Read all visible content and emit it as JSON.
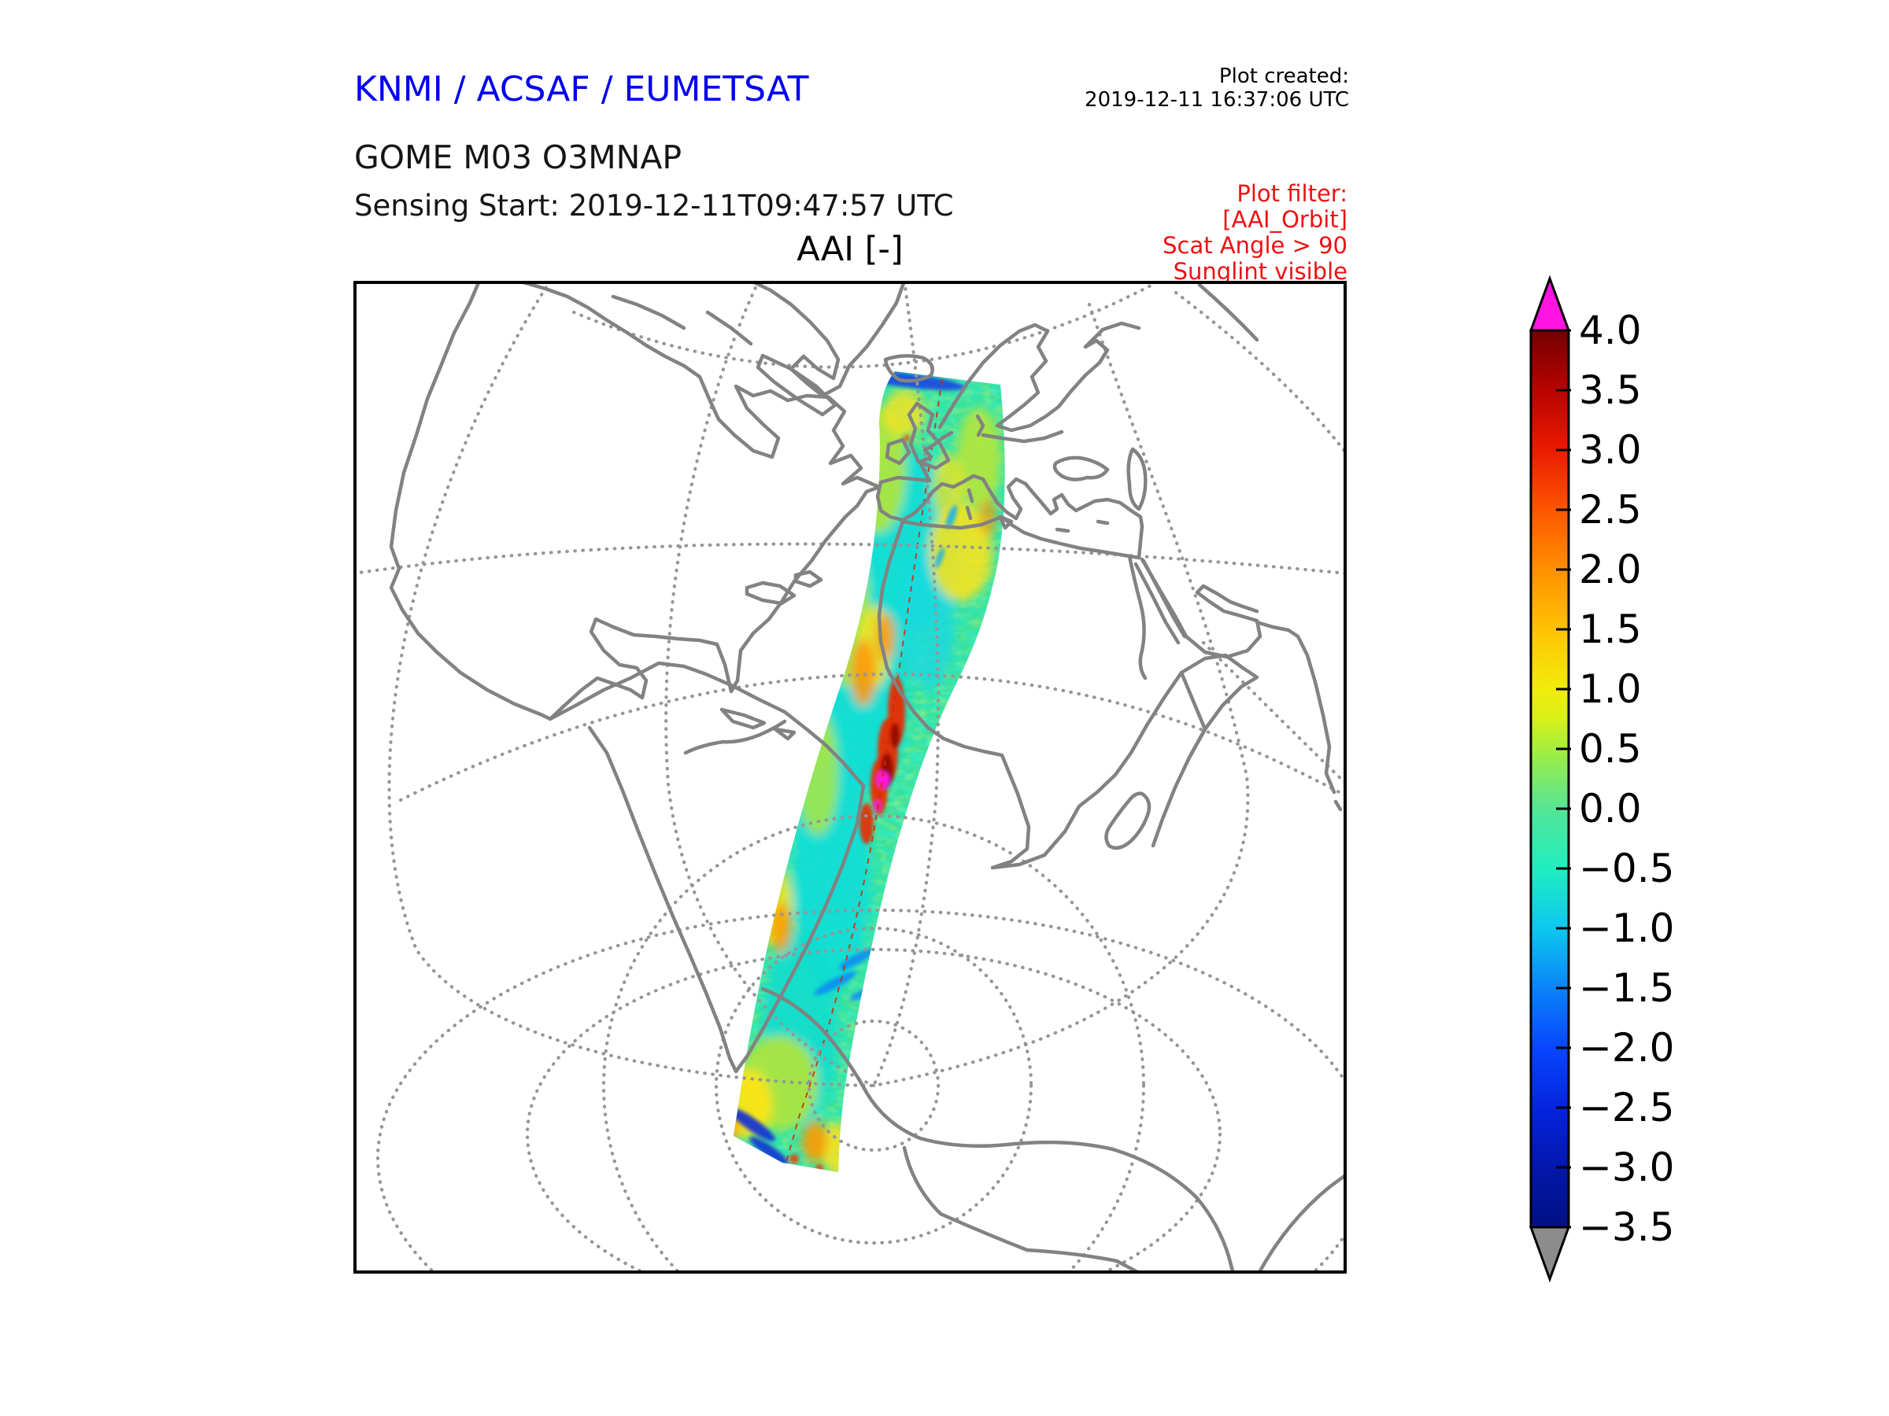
{
  "header": {
    "org": "KNMI / ACSAF / EUMETSAT",
    "org_color": "#0000ee",
    "product": "GOME M03 O3MNAP",
    "sensing_start": "Sensing Start: 2019-12-11T09:47:57 UTC",
    "created_label": "Plot created:",
    "created_value": "2019-12-11 16:37:06 UTC"
  },
  "filter_note": {
    "color": "#ee1111",
    "line1": "Plot filter:",
    "line2": "[AAI_Orbit]",
    "line3": "Scat Angle > 90",
    "line4": "Sunglint visible"
  },
  "map": {
    "title": "AAI [-]",
    "frame_color": "#000000",
    "coast_color": "#828282",
    "grid_color": "#969696",
    "background": "#ffffff"
  },
  "chart_data": {
    "type": "heatmap",
    "title": "AAI [-]",
    "organisation": "KNMI / ACSAF / EUMETSAT",
    "product": "GOME M03 O3MNAP",
    "sensing_start_utc": "2019-12-11T09:47:57",
    "plot_created_utc": "2019-12-11 16:37:06",
    "filters": [
      "[AAI_Orbit]",
      "Scat Angle > 90",
      "Sunglint visible"
    ],
    "projection": "globe view of Atlantic / Europe / Africa / Antarctica with dotted graticule",
    "swath": {
      "description": "single descending orbit swath of Absorbing Aerosol Index from ~62N (Scandinavia/UK) across Iberia and west Africa, over the south Atlantic down to Antarctica (~75S)",
      "dominant_value_range": [
        -1.0,
        1.0
      ],
      "features": [
        "dark blue fringe (AAI < -2) along northern swath edge near Norway",
        "orange/red streaks (AAI 2-3.5) over the Sahara / west Africa coast",
        "magenta saturated plume (AAI > 4) near 12N off Senegal",
        "blue streaks (AAI < -1.5) mid south Atlantic and at the Antarctic edge",
        "orange patches (AAI ~2) over Antarctica near the bottom of the swath",
        "thin dashed red sub-satellite track along the swath centre"
      ],
      "track_color": "#cc2a00"
    },
    "colorbar": {
      "label": "AAI [-]",
      "min": -3.5,
      "max": 4.0,
      "tick_step": 0.5,
      "ticks": [
        "4.0",
        "3.5",
        "3.0",
        "2.5",
        "2.0",
        "1.5",
        "1.0",
        "0.5",
        "0.0",
        "−0.5",
        "−1.0",
        "−1.5",
        "−2.0",
        "−2.5",
        "−3.0",
        "−3.5"
      ],
      "tick_values": [
        4.0,
        3.5,
        3.0,
        2.5,
        2.0,
        1.5,
        1.0,
        0.5,
        0.0,
        -0.5,
        -1.0,
        -1.5,
        -2.0,
        -2.5,
        -3.0,
        -3.5
      ],
      "over_color": "#ff14e1",
      "under_color": "#8c8c8c",
      "stops": [
        [
          0.0,
          "#730002"
        ],
        [
          0.067,
          "#b80301"
        ],
        [
          0.133,
          "#eb1a00"
        ],
        [
          0.2,
          "#fe5600"
        ],
        [
          0.267,
          "#ff9000"
        ],
        [
          0.333,
          "#ffc204"
        ],
        [
          0.4,
          "#f0ec0c"
        ],
        [
          0.433,
          "#d8f018"
        ],
        [
          0.467,
          "#a4ee3e"
        ],
        [
          0.533,
          "#55e595"
        ],
        [
          0.6,
          "#1feec0"
        ],
        [
          0.667,
          "#0cc8f0"
        ],
        [
          0.733,
          "#0b84f8"
        ],
        [
          0.8,
          "#0846ff"
        ],
        [
          0.867,
          "#0524e0"
        ],
        [
          0.933,
          "#0317ac"
        ],
        [
          1.0,
          "#021082"
        ]
      ]
    }
  }
}
